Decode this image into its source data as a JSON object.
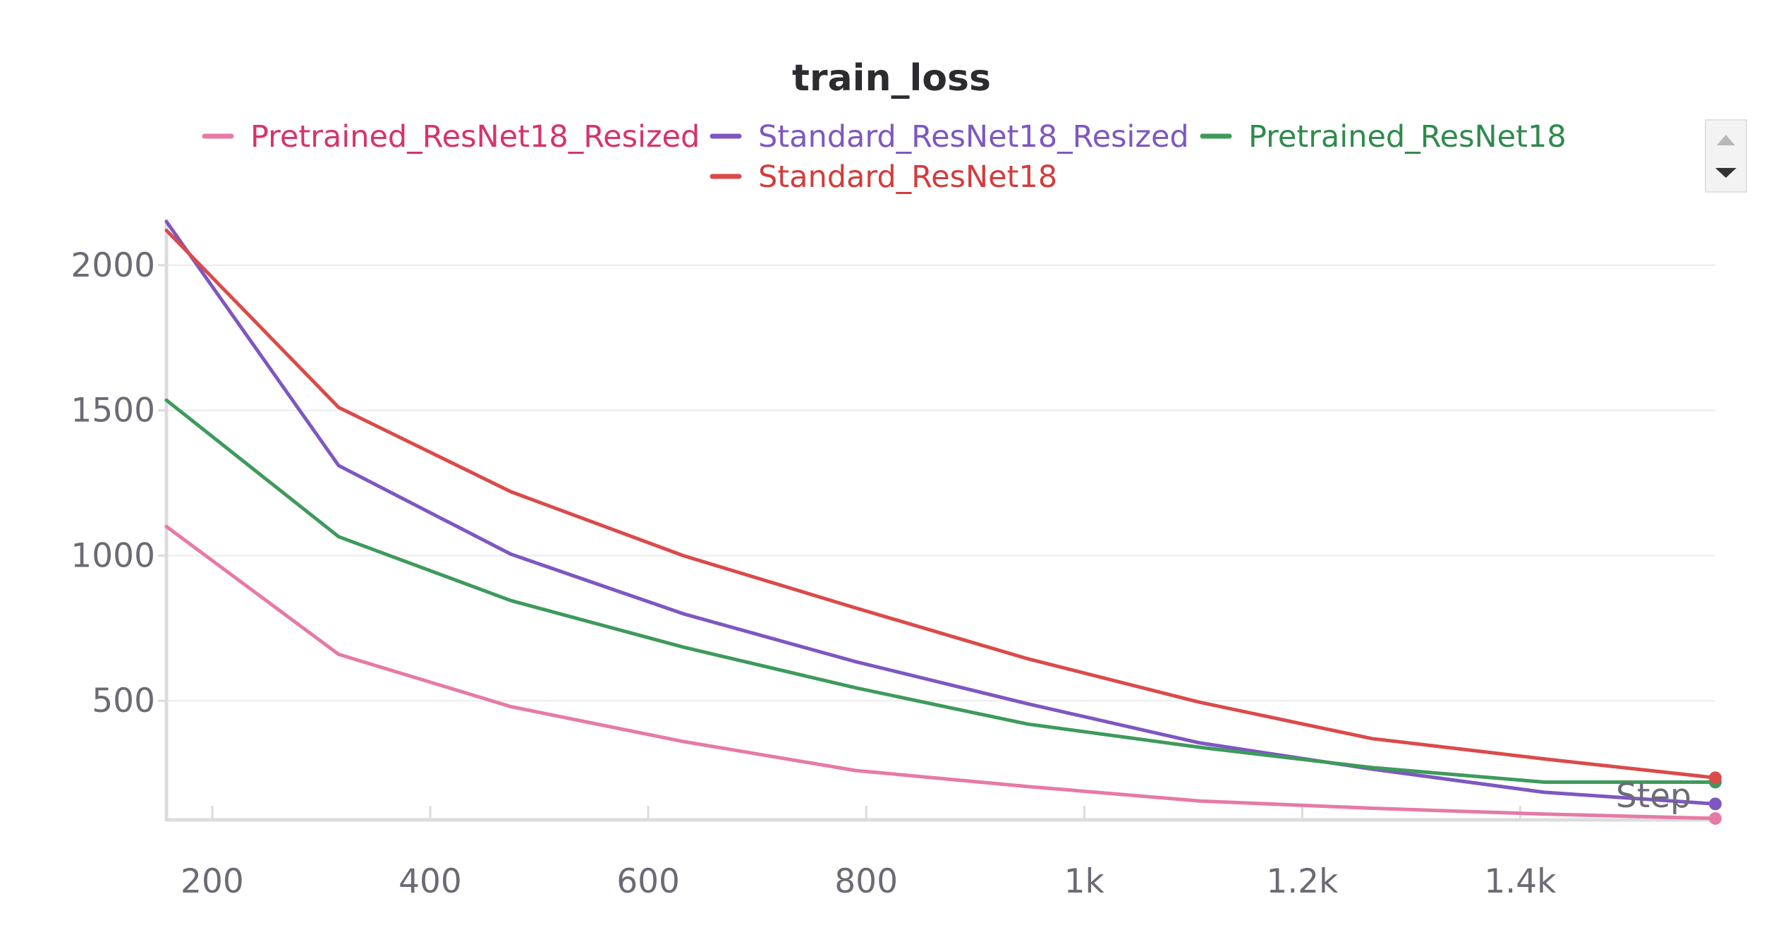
{
  "chart_data": {
    "type": "line",
    "title": "train_loss",
    "xlabel": "Step",
    "ylabel": "",
    "xlim": [
      158,
      1579
    ],
    "ylim": [
      90,
      2160
    ],
    "x_ticks": [
      200,
      400,
      600,
      800,
      1000,
      1200,
      1400
    ],
    "x_tick_labels": [
      "200",
      "400",
      "600",
      "800",
      "1k",
      "1.2k",
      "1.4k"
    ],
    "y_ticks": [
      500,
      1000,
      1500,
      2000
    ],
    "y_tick_labels": [
      "500",
      "1000",
      "1500",
      "2000"
    ],
    "grid": true,
    "legend_position": "top",
    "x": [
      158,
      316,
      474,
      632,
      790,
      948,
      1106,
      1264,
      1422,
      1579
    ],
    "series": [
      {
        "name": "Pretrained_ResNet18_Resized",
        "color": "#e67aa6",
        "text_color": "#d6336c",
        "values": [
          1100,
          660,
          480,
          360,
          260,
          205,
          155,
          130,
          110,
          95
        ]
      },
      {
        "name": "Standard_ResNet18_Resized",
        "color": "#7e57c2",
        "text_color": "#7e57c2",
        "values": [
          2150,
          1310,
          1005,
          800,
          635,
          490,
          355,
          265,
          185,
          145
        ]
      },
      {
        "name": "Pretrained_ResNet18",
        "color": "#3e9a5b",
        "text_color": "#2f8a4c",
        "values": [
          1535,
          1065,
          845,
          685,
          545,
          420,
          340,
          270,
          220,
          220
        ]
      },
      {
        "name": "Standard_ResNet18",
        "color": "#db4a4a",
        "text_color": "#d33c3c",
        "values": [
          2120,
          1510,
          1220,
          1000,
          820,
          645,
          495,
          370,
          300,
          235
        ]
      }
    ]
  },
  "legend_scroll": {
    "up_icon": "scroll-up-icon",
    "down_icon": "scroll-down-icon"
  }
}
